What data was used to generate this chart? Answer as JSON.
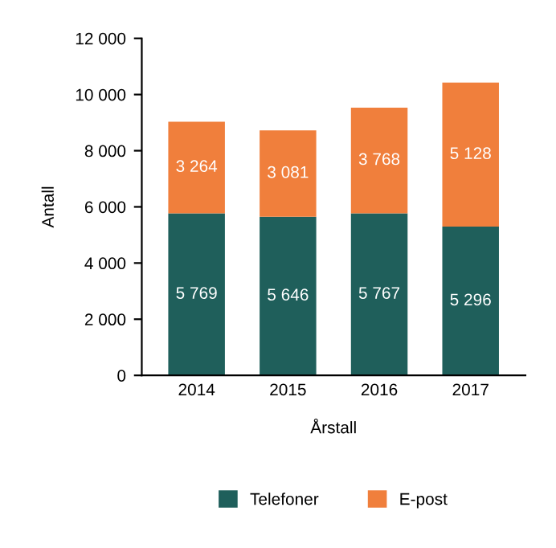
{
  "chart_data": {
    "type": "bar",
    "stacked": true,
    "xlabel": "Årstall",
    "ylabel": "Antall",
    "categories": [
      "2014",
      "2015",
      "2016",
      "2017"
    ],
    "series": [
      {
        "name": "Telefoner",
        "color": "#1f5f5b",
        "values": [
          5769,
          5646,
          5767,
          5296
        ],
        "value_labels": [
          "5 769",
          "5 646",
          "5 767",
          "5 296"
        ]
      },
      {
        "name": "E-post",
        "color": "#f07f3c",
        "values": [
          3264,
          3081,
          3768,
          5128
        ],
        "value_labels": [
          "3 264",
          "3 081",
          "3 768",
          "5 128"
        ]
      }
    ],
    "ylim": [
      0,
      12000
    ],
    "yticks": [
      0,
      {
        "value": 2000,
        "label": "2 000"
      },
      {
        "value": 4000,
        "label": "4 000"
      },
      {
        "value": 6000,
        "label": "6 000"
      },
      {
        "value": 8000,
        "label": "8 000"
      },
      {
        "value": 10000,
        "label": "10 000"
      },
      {
        "value": 12000,
        "label": "12 000"
      }
    ],
    "grid": false,
    "legend": "bottom"
  }
}
